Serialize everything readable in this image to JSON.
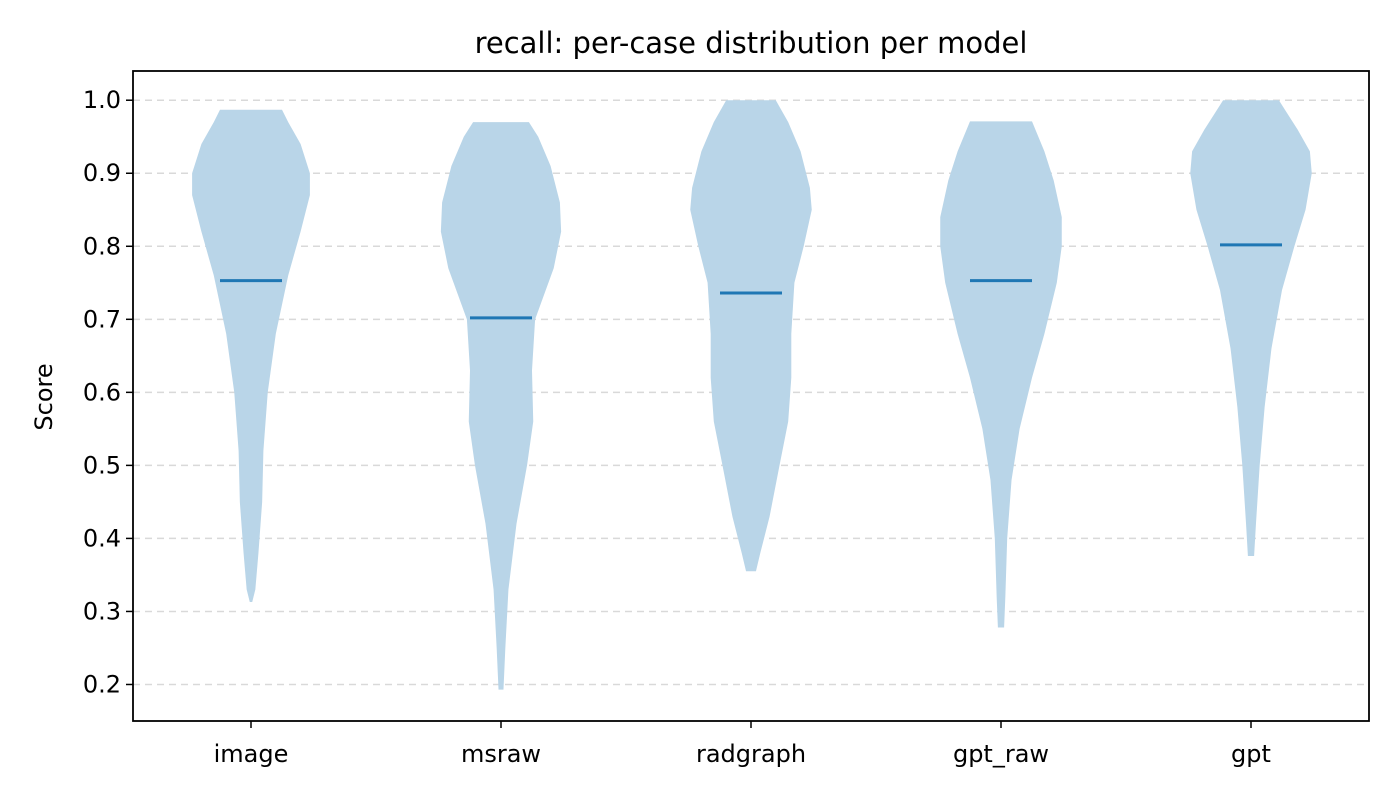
{
  "chart_data": {
    "type": "violin",
    "title": "recall: per-case distribution per model",
    "xlabel": "",
    "ylabel": "Score",
    "ylim": [
      0.15,
      1.04
    ],
    "yticks": [
      "0.2",
      "0.3",
      "0.4",
      "0.5",
      "0.6",
      "0.7",
      "0.8",
      "0.9",
      "1.0"
    ],
    "grid": "horizontal-dashed",
    "colors": {
      "violin_fill": "#b9d5e8",
      "median_line": "#1f77b4"
    },
    "categories": [
      "image",
      "msraw",
      "radgraph",
      "gpt_raw",
      "gpt"
    ],
    "violins": [
      {
        "category": "image",
        "min": 0.313,
        "max": 0.987,
        "median": 0.753,
        "profile": [
          [
            0.313,
            0.02
          ],
          [
            0.33,
            0.07
          ],
          [
            0.38,
            0.12
          ],
          [
            0.45,
            0.18
          ],
          [
            0.52,
            0.2
          ],
          [
            0.6,
            0.27
          ],
          [
            0.68,
            0.4
          ],
          [
            0.76,
            0.6
          ],
          [
            0.82,
            0.8
          ],
          [
            0.87,
            0.95
          ],
          [
            0.9,
            0.95
          ],
          [
            0.94,
            0.8
          ],
          [
            0.97,
            0.6
          ],
          [
            0.987,
            0.5
          ]
        ]
      },
      {
        "category": "msraw",
        "min": 0.193,
        "max": 0.97,
        "median": 0.702,
        "profile": [
          [
            0.193,
            0.04
          ],
          [
            0.25,
            0.07
          ],
          [
            0.33,
            0.12
          ],
          [
            0.42,
            0.25
          ],
          [
            0.5,
            0.42
          ],
          [
            0.56,
            0.52
          ],
          [
            0.63,
            0.5
          ],
          [
            0.7,
            0.55
          ],
          [
            0.77,
            0.85
          ],
          [
            0.82,
            0.97
          ],
          [
            0.86,
            0.95
          ],
          [
            0.91,
            0.8
          ],
          [
            0.95,
            0.6
          ],
          [
            0.97,
            0.45
          ]
        ]
      },
      {
        "category": "radgraph",
        "min": 0.355,
        "max": 1.0,
        "median": 0.736,
        "profile": [
          [
            0.355,
            0.08
          ],
          [
            0.38,
            0.15
          ],
          [
            0.43,
            0.3
          ],
          [
            0.5,
            0.46
          ],
          [
            0.56,
            0.6
          ],
          [
            0.62,
            0.65
          ],
          [
            0.68,
            0.65
          ],
          [
            0.75,
            0.7
          ],
          [
            0.8,
            0.85
          ],
          [
            0.85,
            0.98
          ],
          [
            0.88,
            0.95
          ],
          [
            0.93,
            0.8
          ],
          [
            0.97,
            0.6
          ],
          [
            1.0,
            0.4
          ]
        ]
      },
      {
        "category": "gpt_raw",
        "min": 0.278,
        "max": 0.971,
        "median": 0.753,
        "profile": [
          [
            0.278,
            0.05
          ],
          [
            0.32,
            0.07
          ],
          [
            0.4,
            0.1
          ],
          [
            0.48,
            0.17
          ],
          [
            0.55,
            0.3
          ],
          [
            0.62,
            0.5
          ],
          [
            0.68,
            0.7
          ],
          [
            0.75,
            0.9
          ],
          [
            0.8,
            0.98
          ],
          [
            0.84,
            0.98
          ],
          [
            0.89,
            0.85
          ],
          [
            0.93,
            0.7
          ],
          [
            0.971,
            0.5
          ]
        ]
      },
      {
        "category": "gpt",
        "min": 0.376,
        "max": 1.0,
        "median": 0.802,
        "profile": [
          [
            0.376,
            0.05
          ],
          [
            0.42,
            0.08
          ],
          [
            0.5,
            0.14
          ],
          [
            0.58,
            0.22
          ],
          [
            0.66,
            0.33
          ],
          [
            0.74,
            0.5
          ],
          [
            0.8,
            0.7
          ],
          [
            0.85,
            0.88
          ],
          [
            0.9,
            0.98
          ],
          [
            0.93,
            0.95
          ],
          [
            0.96,
            0.75
          ],
          [
            0.98,
            0.6
          ],
          [
            1.0,
            0.45
          ]
        ]
      }
    ]
  }
}
